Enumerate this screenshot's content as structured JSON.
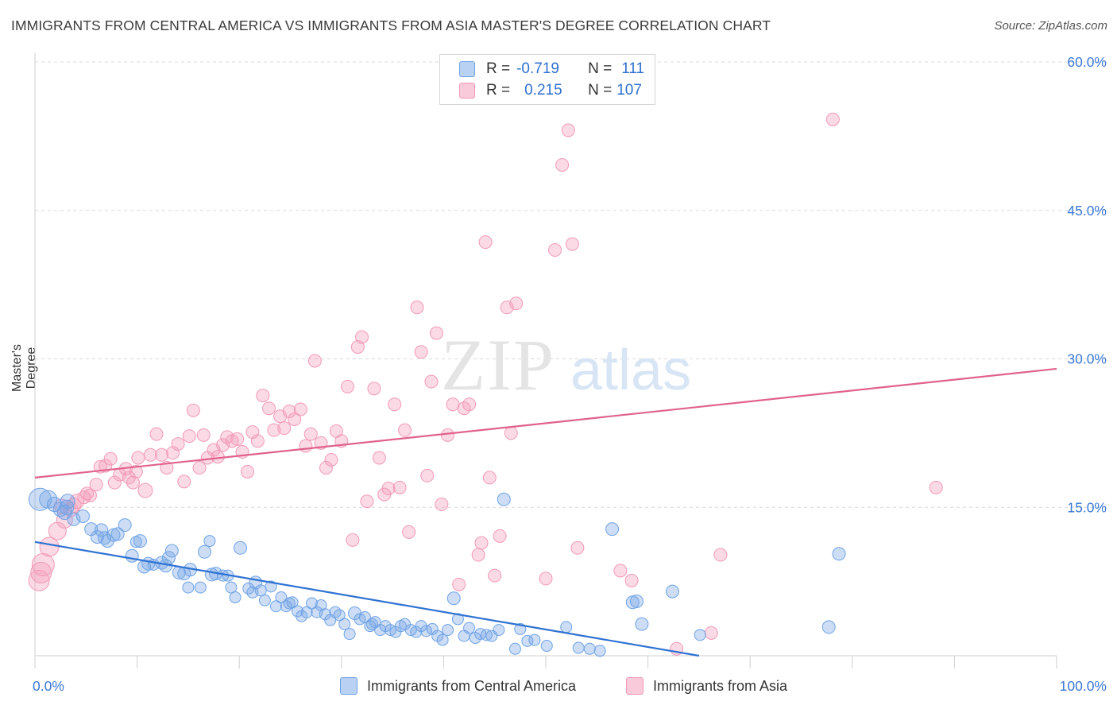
{
  "title": "IMMIGRANTS FROM CENTRAL AMERICA VS IMMIGRANTS FROM ASIA MASTER'S DEGREE CORRELATION CHART",
  "source": "Source: ZipAtlas.com",
  "watermark": {
    "zip": "ZIP",
    "atlas": "atlas"
  },
  "legend_top": {
    "rows": [
      {
        "r_label": "R =",
        "r_value": "-0.719",
        "n_label": "N =",
        "n_value": "111"
      },
      {
        "r_label": "R =",
        "r_value": "0.215",
        "n_label": "N =",
        "n_value": "107"
      }
    ]
  },
  "legend_bottom": [
    "Immigrants from Central America",
    "Immigrants from Asia"
  ],
  "colors": {
    "blue": "#6fa3e6",
    "blue_line": "#2f72d2",
    "pink": "#f29ab6",
    "pink_line": "#e0628c",
    "tick_text": "#3a78d4",
    "grid": "#d9d9d9"
  },
  "chart_data": {
    "type": "scatter",
    "xlabel": "",
    "ylabel": "Master's Degree",
    "xlim": [
      0,
      100
    ],
    "ylim": [
      0,
      60
    ],
    "x_tick_labels": [
      "0.0%",
      "100.0%"
    ],
    "y_ticks": [
      15,
      30,
      45,
      60
    ],
    "y_tick_labels": [
      "15.0%",
      "30.0%",
      "45.0%",
      "60.0%"
    ],
    "grid": true,
    "legend_position": "top-center",
    "series": [
      {
        "name": "Immigrants from Central America",
        "color": "#6fa3e6",
        "trend": {
          "x": [
            0,
            65.0
          ],
          "y": [
            11.5,
            0.0
          ]
        },
        "points": [
          [
            0.5,
            15.8,
            14
          ],
          [
            1.3,
            15.8,
            11
          ],
          [
            2.5,
            14.8,
            9
          ],
          [
            3.1,
            15.0,
            9
          ],
          [
            3.8,
            13.8,
            8
          ],
          [
            3.2,
            15.6,
            9
          ],
          [
            4.7,
            14.1,
            8
          ],
          [
            5.5,
            12.8,
            8
          ],
          [
            6.1,
            12.0,
            8
          ],
          [
            6.5,
            12.7,
            8
          ],
          [
            7.1,
            11.6,
            8
          ],
          [
            7.7,
            12.2,
            8
          ],
          [
            8.1,
            12.3,
            8
          ],
          [
            8.8,
            13.2,
            8
          ],
          [
            9.5,
            10.1,
            8
          ],
          [
            9.9,
            11.5,
            7
          ],
          [
            10.3,
            11.6,
            8
          ],
          [
            10.7,
            9.0,
            8
          ],
          [
            11.6,
            9.2,
            7
          ],
          [
            12.4,
            9.4,
            8
          ],
          [
            12.8,
            9.1,
            8
          ],
          [
            13.1,
            9.9,
            8
          ],
          [
            13.4,
            10.6,
            8
          ],
          [
            14.1,
            8.4,
            8
          ],
          [
            14.6,
            8.3,
            8
          ],
          [
            15.0,
            6.9,
            7
          ],
          [
            15.2,
            8.7,
            8
          ],
          [
            16.2,
            6.9,
            7
          ],
          [
            16.6,
            10.5,
            8
          ],
          [
            17.1,
            11.6,
            7
          ],
          [
            17.7,
            8.3,
            8
          ],
          [
            18.4,
            8.1,
            7
          ],
          [
            18.9,
            8.1,
            7
          ],
          [
            19.2,
            6.9,
            7
          ],
          [
            19.6,
            5.9,
            7
          ],
          [
            20.1,
            10.9,
            8
          ],
          [
            20.9,
            6.8,
            7
          ],
          [
            21.6,
            7.4,
            8
          ],
          [
            22.1,
            6.6,
            7
          ],
          [
            22.5,
            5.6,
            7
          ],
          [
            23.1,
            7.0,
            7
          ],
          [
            23.6,
            5.0,
            7
          ],
          [
            24.1,
            5.9,
            7
          ],
          [
            24.6,
            5.0,
            7
          ],
          [
            25.2,
            5.4,
            7
          ],
          [
            25.7,
            4.5,
            7
          ],
          [
            26.1,
            4.0,
            7
          ],
          [
            26.6,
            4.4,
            7
          ],
          [
            27.1,
            5.3,
            7
          ],
          [
            27.6,
            4.4,
            7
          ],
          [
            28.0,
            5.1,
            7
          ],
          [
            28.4,
            4.2,
            7
          ],
          [
            28.9,
            3.6,
            7
          ],
          [
            29.4,
            4.4,
            7
          ],
          [
            29.8,
            4.1,
            7
          ],
          [
            30.3,
            3.2,
            7
          ],
          [
            30.8,
            2.2,
            7
          ],
          [
            31.3,
            4.3,
            8
          ],
          [
            31.8,
            3.7,
            7
          ],
          [
            32.3,
            3.9,
            7
          ],
          [
            32.8,
            3.0,
            7
          ],
          [
            33.3,
            3.4,
            7
          ],
          [
            33.8,
            2.6,
            7
          ],
          [
            34.3,
            3.0,
            7
          ],
          [
            34.8,
            2.6,
            7
          ],
          [
            35.3,
            2.4,
            7
          ],
          [
            35.8,
            3.0,
            7
          ],
          [
            36.2,
            3.2,
            7
          ],
          [
            36.8,
            2.6,
            7
          ],
          [
            37.3,
            2.4,
            7
          ],
          [
            37.8,
            3.0,
            7
          ],
          [
            38.3,
            2.5,
            7
          ],
          [
            38.9,
            2.7,
            7
          ],
          [
            39.4,
            2.0,
            7
          ],
          [
            39.9,
            1.6,
            7
          ],
          [
            40.4,
            2.6,
            7
          ],
          [
            41.0,
            5.8,
            8
          ],
          [
            41.4,
            3.7,
            7
          ],
          [
            42.0,
            2.0,
            7
          ],
          [
            42.5,
            2.8,
            7
          ],
          [
            43.1,
            1.8,
            7
          ],
          [
            43.6,
            2.2,
            7
          ],
          [
            44.2,
            2.1,
            7
          ],
          [
            44.7,
            2.0,
            7
          ],
          [
            45.4,
            2.6,
            7
          ],
          [
            45.9,
            15.8,
            8
          ],
          [
            47.0,
            0.7,
            7
          ],
          [
            47.5,
            2.7,
            7
          ],
          [
            48.2,
            1.5,
            7
          ],
          [
            48.9,
            1.6,
            7
          ],
          [
            50.1,
            1.0,
            7
          ],
          [
            52.0,
            2.9,
            7
          ],
          [
            53.2,
            0.8,
            7
          ],
          [
            54.3,
            0.7,
            7
          ],
          [
            56.5,
            12.8,
            8
          ],
          [
            58.5,
            5.4,
            8
          ],
          [
            58.9,
            5.5,
            8
          ],
          [
            59.4,
            3.2,
            8
          ],
          [
            62.4,
            6.5,
            8
          ],
          [
            65.1,
            2.1,
            7
          ],
          [
            77.7,
            2.9,
            8
          ],
          [
            78.7,
            10.3,
            8
          ],
          [
            55.3,
            0.5,
            7
          ],
          [
            1.9,
            15.3,
            9
          ],
          [
            2.9,
            14.5,
            9
          ],
          [
            6.8,
            11.9,
            8
          ],
          [
            11.1,
            9.3,
            8
          ],
          [
            17.3,
            8.2,
            8
          ],
          [
            21.3,
            6.4,
            7
          ],
          [
            24.9,
            5.3,
            7
          ],
          [
            33.0,
            3.2,
            7
          ]
        ]
      },
      {
        "name": "Immigrants from Asia",
        "color": "#f29ab6",
        "trend": {
          "x": [
            0,
            100
          ],
          "y": [
            18.0,
            29.0
          ]
        },
        "points": [
          [
            0.4,
            7.6,
            13
          ],
          [
            0.8,
            9.2,
            14
          ],
          [
            1.4,
            11.0,
            12
          ],
          [
            2.2,
            12.6,
            11
          ],
          [
            2.9,
            13.7,
            10
          ],
          [
            3.5,
            14.8,
            9
          ],
          [
            4.1,
            15.6,
            9
          ],
          [
            4.8,
            16.0,
            8
          ],
          [
            5.4,
            16.2,
            8
          ],
          [
            6.0,
            17.3,
            8
          ],
          [
            6.4,
            19.1,
            8
          ],
          [
            6.9,
            19.2,
            8
          ],
          [
            7.4,
            19.9,
            8
          ],
          [
            7.8,
            17.5,
            8
          ],
          [
            8.3,
            18.3,
            8
          ],
          [
            8.9,
            18.9,
            8
          ],
          [
            9.2,
            18.0,
            8
          ],
          [
            9.6,
            17.5,
            8
          ],
          [
            10.1,
            20.0,
            8
          ],
          [
            10.8,
            16.7,
            9
          ],
          [
            11.3,
            20.3,
            8
          ],
          [
            11.9,
            22.4,
            8
          ],
          [
            12.4,
            20.3,
            8
          ],
          [
            12.9,
            19.0,
            8
          ],
          [
            13.5,
            20.5,
            8
          ],
          [
            14.0,
            21.4,
            8
          ],
          [
            14.6,
            17.6,
            8
          ],
          [
            15.1,
            22.2,
            8
          ],
          [
            15.5,
            24.8,
            8
          ],
          [
            16.1,
            19.0,
            8
          ],
          [
            16.5,
            22.3,
            8
          ],
          [
            16.9,
            20.0,
            8
          ],
          [
            17.5,
            20.8,
            8
          ],
          [
            17.9,
            20.1,
            8
          ],
          [
            18.4,
            21.3,
            8
          ],
          [
            18.8,
            22.1,
            8
          ],
          [
            19.3,
            21.7,
            8
          ],
          [
            19.8,
            21.9,
            8
          ],
          [
            20.3,
            20.6,
            8
          ],
          [
            20.8,
            18.6,
            8
          ],
          [
            21.3,
            22.6,
            8
          ],
          [
            21.8,
            21.7,
            8
          ],
          [
            22.3,
            26.3,
            8
          ],
          [
            22.9,
            25.0,
            8
          ],
          [
            23.4,
            22.8,
            8
          ],
          [
            24.0,
            24.2,
            8
          ],
          [
            24.4,
            23.0,
            8
          ],
          [
            24.9,
            24.7,
            8
          ],
          [
            25.4,
            23.9,
            8
          ],
          [
            26.0,
            24.9,
            8
          ],
          [
            26.5,
            21.2,
            8
          ],
          [
            27.0,
            22.4,
            8
          ],
          [
            27.4,
            29.8,
            8
          ],
          [
            28.0,
            21.5,
            8
          ],
          [
            28.5,
            19.0,
            8
          ],
          [
            29.0,
            19.8,
            8
          ],
          [
            29.5,
            22.7,
            8
          ],
          [
            30.0,
            21.7,
            8
          ],
          [
            30.6,
            27.2,
            8
          ],
          [
            31.1,
            11.7,
            8
          ],
          [
            31.6,
            31.2,
            8
          ],
          [
            32.0,
            32.2,
            8
          ],
          [
            32.5,
            15.6,
            8
          ],
          [
            33.2,
            27.0,
            8
          ],
          [
            33.7,
            20.0,
            8
          ],
          [
            34.2,
            16.3,
            8
          ],
          [
            34.6,
            16.9,
            8
          ],
          [
            35.2,
            25.4,
            8
          ],
          [
            35.7,
            17.0,
            8
          ],
          [
            36.2,
            22.8,
            8
          ],
          [
            36.6,
            12.5,
            8
          ],
          [
            37.4,
            35.2,
            8
          ],
          [
            37.8,
            30.7,
            8
          ],
          [
            38.4,
            18.2,
            8
          ],
          [
            38.8,
            27.7,
            8
          ],
          [
            39.3,
            32.6,
            8
          ],
          [
            39.8,
            15.3,
            8
          ],
          [
            40.4,
            22.3,
            8
          ],
          [
            40.9,
            25.4,
            8
          ],
          [
            41.5,
            7.2,
            8
          ],
          [
            42.0,
            25.0,
            8
          ],
          [
            42.5,
            25.4,
            8
          ],
          [
            43.4,
            10.2,
            8
          ],
          [
            43.7,
            11.4,
            8
          ],
          [
            44.1,
            41.8,
            8
          ],
          [
            44.5,
            18.0,
            8
          ],
          [
            45.0,
            8.1,
            8
          ],
          [
            45.5,
            12.1,
            8
          ],
          [
            46.2,
            35.2,
            8
          ],
          [
            46.6,
            22.5,
            8
          ],
          [
            47.1,
            35.6,
            8
          ],
          [
            50.0,
            7.8,
            8
          ],
          [
            50.9,
            41.0,
            8
          ],
          [
            51.6,
            49.6,
            8
          ],
          [
            52.2,
            53.1,
            8
          ],
          [
            52.6,
            41.6,
            8
          ],
          [
            53.1,
            10.9,
            8
          ],
          [
            57.3,
            8.6,
            8
          ],
          [
            58.4,
            7.6,
            8
          ],
          [
            62.8,
            0.7,
            8
          ],
          [
            66.2,
            2.3,
            8
          ],
          [
            67.1,
            10.2,
            8
          ],
          [
            78.1,
            54.2,
            8
          ],
          [
            88.2,
            17.0,
            8
          ],
          [
            0.6,
            8.4,
            13
          ],
          [
            2.6,
            15.1,
            9
          ],
          [
            3.8,
            15.2,
            9
          ],
          [
            5.1,
            16.4,
            8
          ],
          [
            9.9,
            18.6,
            8
          ]
        ]
      }
    ]
  }
}
